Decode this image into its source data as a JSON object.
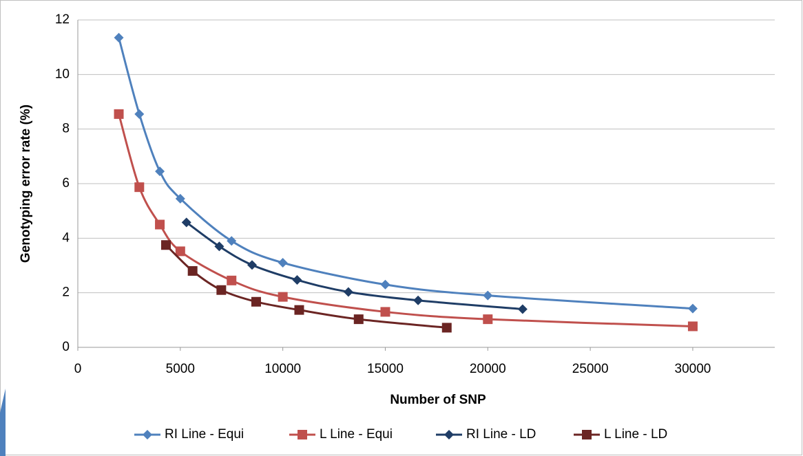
{
  "chart_data": {
    "type": "scatter",
    "smooth": true,
    "grid": true,
    "legend": "bottom",
    "xlabel": "Number of SNP",
    "ylabel": "Genotyping error rate  (%)",
    "xlim": [
      0,
      34000
    ],
    "xticks": [
      0,
      5000,
      10000,
      15000,
      20000,
      25000,
      30000
    ],
    "ylim": [
      0,
      12
    ],
    "yticks": [
      0,
      2,
      4,
      6,
      8,
      10,
      12
    ],
    "series": [
      {
        "name": "RI Line - Equi",
        "color": "#4f81bd",
        "marker": "diamond",
        "x": [
          2000,
          3000,
          4000,
          5000,
          7500,
          10000,
          15000,
          20000,
          30000
        ],
        "values": [
          11.35,
          8.55,
          6.45,
          5.45,
          3.9,
          3.1,
          2.3,
          1.9,
          1.42
        ]
      },
      {
        "name": "L Line  - Equi",
        "color": "#c0504d",
        "marker": "square",
        "x": [
          2000,
          3000,
          4000,
          5000,
          7500,
          10000,
          15000,
          20000,
          30000
        ],
        "values": [
          8.55,
          5.87,
          4.5,
          3.52,
          2.45,
          1.85,
          1.3,
          1.03,
          0.77
        ]
      },
      {
        "name": "RI Line - LD",
        "color": "#1f3d66",
        "marker": "diamond",
        "x": [
          5300,
          6900,
          8500,
          10700,
          13200,
          16600,
          21700
        ],
        "values": [
          4.58,
          3.7,
          3.02,
          2.47,
          2.03,
          1.72,
          1.4
        ]
      },
      {
        "name": "L Line - LD",
        "color": "#6b2523",
        "marker": "square",
        "x": [
          4300,
          5600,
          7000,
          8700,
          10800,
          13700,
          18000
        ],
        "values": [
          3.75,
          2.8,
          2.1,
          1.67,
          1.37,
          1.03,
          0.72
        ]
      }
    ]
  }
}
